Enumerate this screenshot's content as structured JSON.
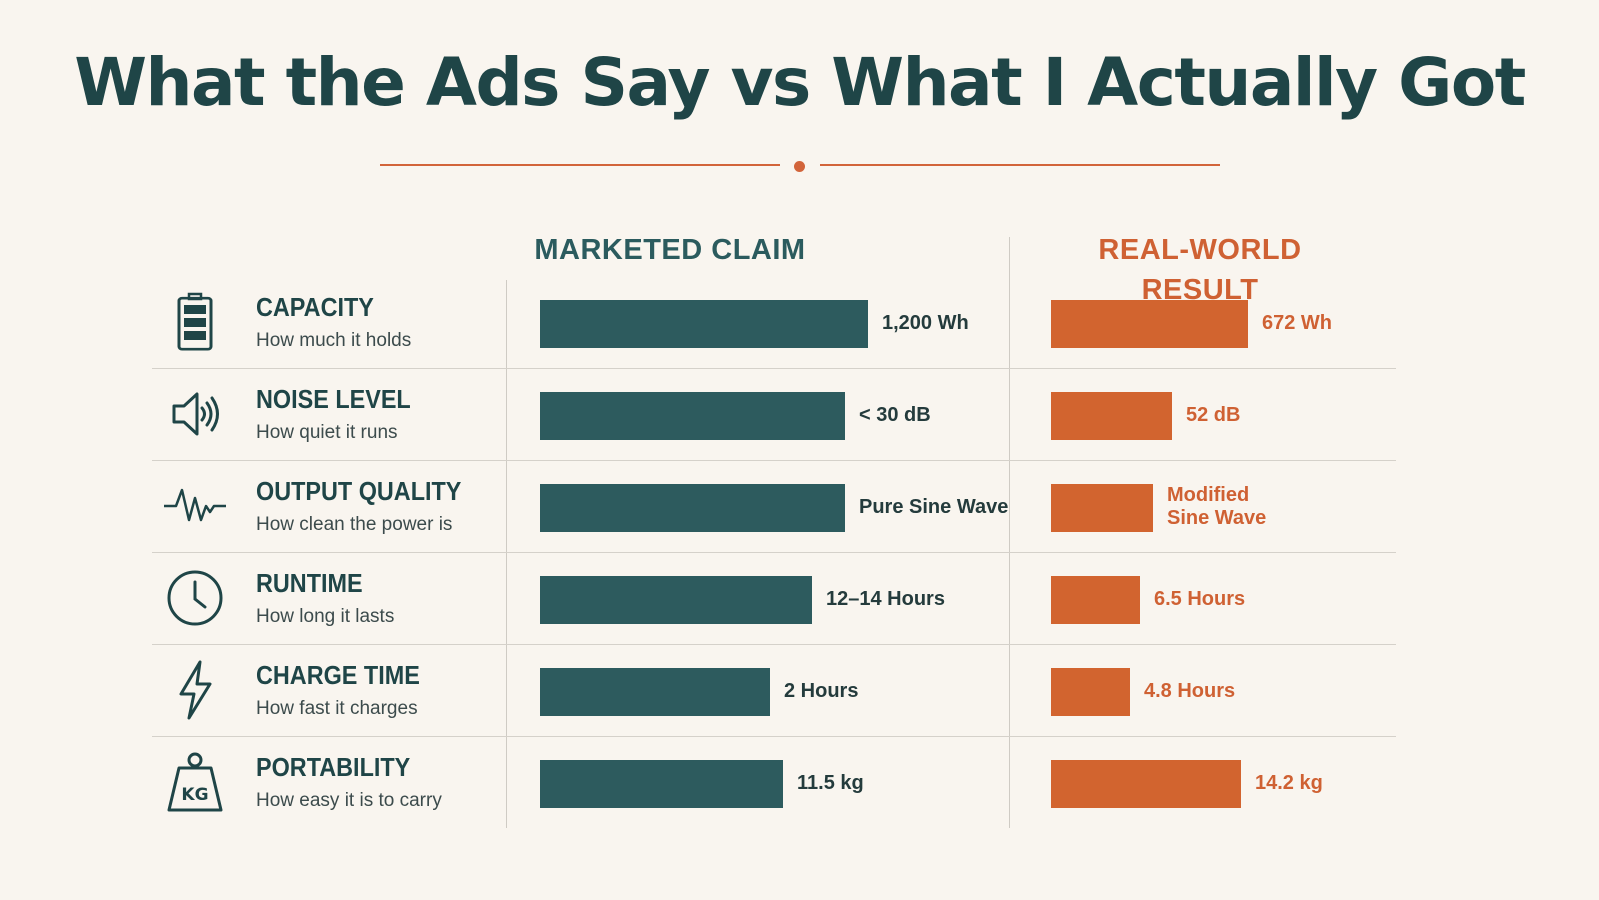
{
  "chart_data": {
    "type": "bar",
    "title": "What the Ads Say vs What I Actually Got",
    "series": [
      {
        "name": "MARKETED CLAIM",
        "values": [
          "1,200 Wh",
          "< 30 dB",
          "Pure Sine Wave",
          "12–14 Hours",
          "2 Hours",
          "11.5 kg"
        ],
        "relative_bar_fill": [
          1.0,
          0.93,
          0.93,
          0.83,
          0.7,
          0.74
        ]
      },
      {
        "name": "REAL-WORLD RESULT",
        "values": [
          "672 Wh",
          "52 dB",
          "Modified Sine Wave",
          "6.5 Hours",
          "4.8 Hours",
          "14.2 kg"
        ],
        "relative_bar_fill": [
          0.6,
          0.37,
          0.31,
          0.27,
          0.24,
          0.58
        ]
      }
    ],
    "categories": [
      "CAPACITY",
      "NOISE LEVEL",
      "OUTPUT QUALITY",
      "RUNTIME",
      "CHARGE TIME",
      "PORTABILITY"
    ],
    "category_subtitles": [
      "How much it holds",
      "How quiet it runs",
      "How clean the power is",
      "How long it lasts",
      "How fast it charges",
      "How easy it is to carry"
    ],
    "category_icons": [
      "battery-icon",
      "speaker-icon",
      "waveform-icon",
      "clock-icon",
      "lightning-icon",
      "kg-weight-icon"
    ]
  },
  "colors": {
    "claim": "#2d5b5e",
    "result": "#d2642f",
    "title": "#1f4547",
    "accent": "#d2643a",
    "background": "#f9f5ef"
  }
}
